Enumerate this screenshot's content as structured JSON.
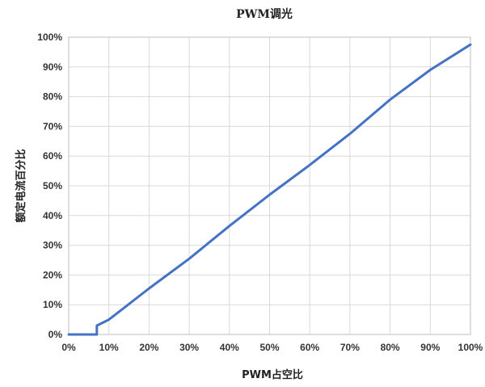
{
  "chart_data": {
    "type": "line",
    "title": "PWM调光",
    "xlabel": "PWM占空比",
    "ylabel": "额定电流百分比",
    "xlim": [
      0,
      100
    ],
    "ylim": [
      0,
      100
    ],
    "x_ticks": [
      "0%",
      "10%",
      "20%",
      "30%",
      "40%",
      "50%",
      "60%",
      "70%",
      "80%",
      "90%",
      "100%"
    ],
    "y_ticks": [
      "0%",
      "10%",
      "20%",
      "30%",
      "40%",
      "50%",
      "60%",
      "70%",
      "80%",
      "90%",
      "100%"
    ],
    "grid": true,
    "legend": "none",
    "series": [
      {
        "color": "#4472c4",
        "x": [
          0,
          7,
          7,
          10,
          20,
          30,
          40,
          50,
          60,
          70,
          80,
          90,
          100
        ],
        "y": [
          0,
          0,
          3,
          5,
          15.5,
          25.5,
          36.5,
          47,
          57,
          67.5,
          79,
          89,
          97.5
        ]
      }
    ]
  }
}
